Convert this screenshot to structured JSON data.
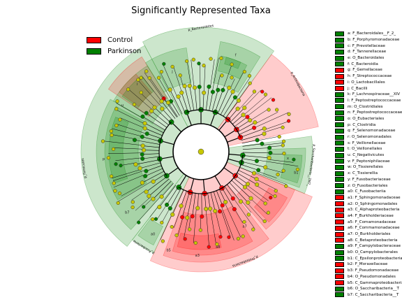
{
  "title": "Significantly Represented Taxa",
  "colors": {
    "control": "#ff0000",
    "parkinson": "#008000",
    "node_neutral": "#c8c800"
  },
  "legend": [
    {
      "label": "Control",
      "color": "#ff0000"
    },
    {
      "label": "Parkinson",
      "color": "#008000"
    }
  ],
  "chart_data": {
    "type": "cladogram",
    "groups": [
      "Control",
      "Parkinson"
    ],
    "clades": [
      {
        "key": "a",
        "name": "F_Bacteroidales__F_2_",
        "group": "Parkinson"
      },
      {
        "key": "b",
        "name": "F_Porphyromonadaceae",
        "group": "Parkinson"
      },
      {
        "key": "c",
        "name": "F_Prevotellaceae",
        "group": "Parkinson"
      },
      {
        "key": "d",
        "name": "F_Tannerellaceae",
        "group": "Parkinson"
      },
      {
        "key": "e",
        "name": "O_Bacteroidales",
        "group": "Parkinson"
      },
      {
        "key": "f",
        "name": "C_Bacteroidia",
        "group": "Parkinson"
      },
      {
        "key": "g",
        "name": "F_Gemellaceae",
        "group": "Control"
      },
      {
        "key": "h",
        "name": "F_Streptococcaceae",
        "group": "Control"
      },
      {
        "key": "i",
        "name": "O_Lactobacillales",
        "group": "Control"
      },
      {
        "key": "j",
        "name": "C_Bacilli",
        "group": "Control"
      },
      {
        "key": "k",
        "name": "F_Lachnospiraceae__XIV",
        "group": "Parkinson"
      },
      {
        "key": "l",
        "name": "F_Peptostreptococcaceae",
        "group": "Parkinson"
      },
      {
        "key": "m",
        "name": "O_Clostridiales",
        "group": "Parkinson"
      },
      {
        "key": "n",
        "name": "F_Peptostreptococcaceae",
        "group": "Parkinson"
      },
      {
        "key": "o",
        "name": "O_Eubacteriales",
        "group": "Parkinson"
      },
      {
        "key": "p",
        "name": "C_Clostridia",
        "group": "Parkinson"
      },
      {
        "key": "q",
        "name": "F_Selenomonadaceae",
        "group": "Parkinson"
      },
      {
        "key": "r",
        "name": "O_Selenomonadales",
        "group": "Parkinson"
      },
      {
        "key": "s",
        "name": "F_Veillonellaceae",
        "group": "Parkinson"
      },
      {
        "key": "t",
        "name": "O_Veillonellales",
        "group": "Parkinson"
      },
      {
        "key": "u",
        "name": "C_Negativicutes",
        "group": "Parkinson"
      },
      {
        "key": "v",
        "name": "F_Peptoniphilaceae",
        "group": "Parkinson"
      },
      {
        "key": "w",
        "name": "O_Tissierellales",
        "group": "Parkinson"
      },
      {
        "key": "x",
        "name": "C_Tissierellia",
        "group": "Parkinson"
      },
      {
        "key": "y",
        "name": "F_Fusobacteriaceae",
        "group": "Parkinson"
      },
      {
        "key": "z",
        "name": "O_Fusobacteriales",
        "group": "Parkinson"
      },
      {
        "key": "a0",
        "name": "C_Fusobacteriia",
        "group": "Parkinson"
      },
      {
        "key": "a1",
        "name": "F_Sphingomonadaceae",
        "group": "Control"
      },
      {
        "key": "a2",
        "name": "O_Sphingomonadales",
        "group": "Control"
      },
      {
        "key": "a3",
        "name": "C_Alphaproteobacteria",
        "group": "Control"
      },
      {
        "key": "a4",
        "name": "F_Burkholderiaceae",
        "group": "Control"
      },
      {
        "key": "a5",
        "name": "F_Comamonadaceae",
        "group": "Control"
      },
      {
        "key": "a6",
        "name": "F_Commamonadaceae",
        "group": "Control"
      },
      {
        "key": "a7",
        "name": "O_Burkholderiales",
        "group": "Control"
      },
      {
        "key": "a8",
        "name": "C_Betaproteobacteria",
        "group": "Control"
      },
      {
        "key": "a9",
        "name": "F_Campylobacteraceae",
        "group": "Parkinson"
      },
      {
        "key": "b0",
        "name": "O_Campylobacterales",
        "group": "Parkinson"
      },
      {
        "key": "b1",
        "name": "C_Epsilonproteobacteria",
        "group": "Parkinson"
      },
      {
        "key": "b2",
        "name": "F_Moraxellaceae",
        "group": "Control"
      },
      {
        "key": "b3",
        "name": "F_Pseudomonadaceae",
        "group": "Control"
      },
      {
        "key": "b4",
        "name": "O_Pseudomonadales",
        "group": "Control"
      },
      {
        "key": "b5",
        "name": "C_Gammaproteobacteria",
        "group": "Control"
      },
      {
        "key": "b6",
        "name": "O_Saccharibacteria__T",
        "group": "Parkinson"
      },
      {
        "key": "b7",
        "name": "C_Saccharibacteria__T",
        "group": "Parkinson"
      }
    ],
    "sectors": [
      {
        "label": "p_Bacteroidetes",
        "group": "Parkinson"
      },
      {
        "label": "p_Actinobacteria",
        "group": "Control"
      },
      {
        "label": "p_Saccharibacteria__TM7_",
        "group": "Parkinson"
      },
      {
        "label": "p_Proteobacteria",
        "group": "Control"
      },
      {
        "label": "p_Fusobacteria",
        "group": "Parkinson"
      },
      {
        "label": "p_Firmicutes",
        "group": "Parkinson"
      }
    ],
    "ring_labels": [
      "i",
      "j",
      "f",
      "a8",
      "a3",
      "a7",
      "a0",
      "b5",
      "b1",
      "x",
      "u",
      "p",
      "b7"
    ]
  }
}
